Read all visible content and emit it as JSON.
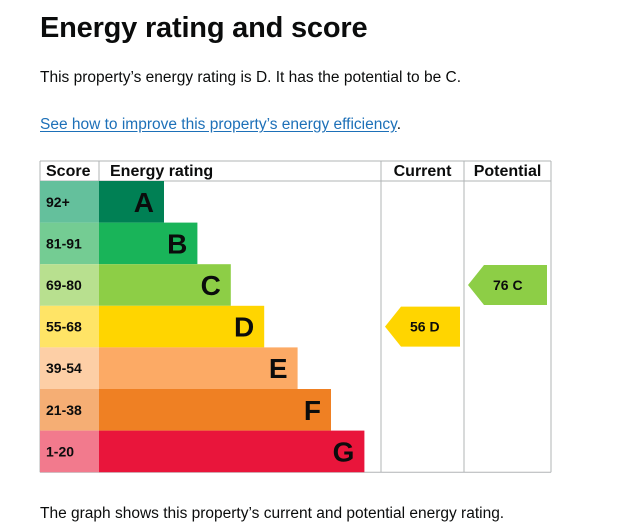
{
  "page": {
    "title": "Energy rating and score",
    "summary": "This property’s energy rating is D. It has the potential to be C.",
    "link_text": "See how to improve this property’s energy efficiency",
    "link_suffix": ".",
    "caption": "The graph shows this property’s current and potential energy rating."
  },
  "colors": {
    "link": "#1d70b8",
    "grid": "#b1b4b6"
  },
  "chart_data": {
    "type": "bar",
    "headers": {
      "score": "Score",
      "rating": "Energy rating",
      "current": "Current",
      "potential": "Potential"
    },
    "bands": [
      {
        "letter": "A",
        "range": "92+",
        "color": "#008054",
        "score_color": "#64c09c"
      },
      {
        "letter": "B",
        "range": "81-91",
        "color": "#19b459",
        "score_color": "#74cc93"
      },
      {
        "letter": "C",
        "range": "69-80",
        "color": "#8dce46",
        "score_color": "#b8e08f"
      },
      {
        "letter": "D",
        "range": "55-68",
        "color": "#ffd500",
        "score_color": "#ffe466"
      },
      {
        "letter": "E",
        "range": "39-54",
        "color": "#fcaa65",
        "score_color": "#fdcfa6"
      },
      {
        "letter": "F",
        "range": "21-38",
        "color": "#ef8023",
        "score_color": "#f5ae74"
      },
      {
        "letter": "G",
        "range": "1-20",
        "color": "#e9153b",
        "score_color": "#f27a8d"
      }
    ],
    "current": {
      "score": 56,
      "band": "D",
      "label": "56 D"
    },
    "potential": {
      "score": 76,
      "band": "C",
      "label": "76 C"
    }
  }
}
